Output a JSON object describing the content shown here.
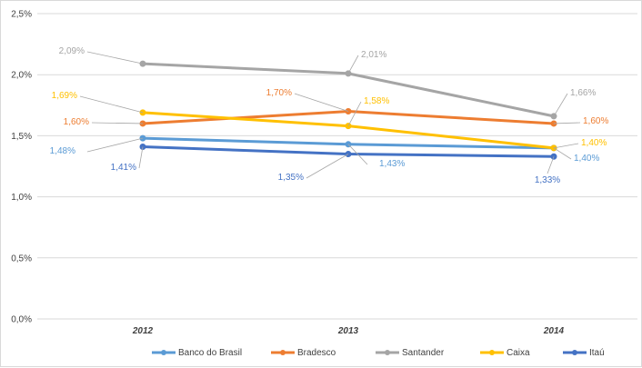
{
  "chart_data": {
    "type": "line",
    "title": "",
    "xlabel": "",
    "ylabel": "",
    "categories": [
      "2012",
      "2013",
      "2014"
    ],
    "ylim": [
      0,
      2.5
    ],
    "y_ticks": [
      "0,0%",
      "0,5%",
      "1,0%",
      "1,5%",
      "2,0%",
      "2,5%"
    ],
    "grid": true,
    "legend_position": "bottom",
    "series": [
      {
        "name": "Banco do Brasil",
        "color": "#5B9BD5",
        "values": [
          1.48,
          1.43,
          1.4
        ],
        "labels": [
          "1,48%",
          "1,43%",
          "1,40%"
        ]
      },
      {
        "name": "Bradesco",
        "color": "#ED7D31",
        "values": [
          1.6,
          1.7,
          1.6
        ],
        "labels": [
          "1,60%",
          "1,70%",
          "1,60%"
        ]
      },
      {
        "name": "Santander",
        "color": "#A5A5A5",
        "values": [
          2.09,
          2.01,
          1.66
        ],
        "labels": [
          "2,09%",
          "2,01%",
          "1,66%"
        ]
      },
      {
        "name": "Caixa",
        "color": "#FFC000",
        "values": [
          1.69,
          1.58,
          1.4
        ],
        "labels": [
          "1,69%",
          "1,58%",
          "1,40%"
        ]
      },
      {
        "name": "Itaú",
        "color": "#4472C4",
        "values": [
          1.41,
          1.35,
          1.33
        ],
        "labels": [
          "1,41%",
          "1,35%",
          "1,33%"
        ]
      }
    ]
  }
}
